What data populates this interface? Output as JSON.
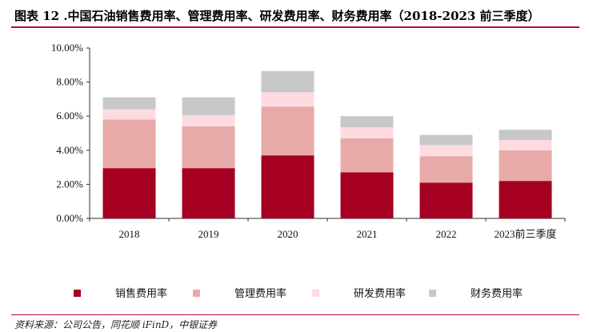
{
  "title": "图表 12 .中国石油销售费用率、管理费用率、研发费用率、财务费用率（2018-2023 前三季度）",
  "source": "资料来源：公司公告，同花顺 iFinD，中银证券",
  "chart_data": {
    "type": "bar",
    "stacked": true,
    "categories": [
      "2018",
      "2019",
      "2020",
      "2021",
      "2022",
      "2023前三季度"
    ],
    "series": [
      {
        "name": "销售费用率",
        "color": "#a50021",
        "values": [
          2.95,
          2.95,
          3.7,
          2.7,
          2.1,
          2.2
        ]
      },
      {
        "name": "管理费用率",
        "color": "#e8aaa8",
        "values": [
          2.85,
          2.45,
          2.85,
          2.0,
          1.55,
          1.8
        ]
      },
      {
        "name": "研发费用率",
        "color": "#fddbe0",
        "values": [
          0.6,
          0.65,
          0.85,
          0.65,
          0.65,
          0.6
        ]
      },
      {
        "name": "财务费用率",
        "color": "#c8c8c8",
        "values": [
          0.7,
          1.05,
          1.25,
          0.65,
          0.6,
          0.6
        ]
      }
    ],
    "y_ticks": [
      "0.00%",
      "2.00%",
      "4.00%",
      "6.00%",
      "8.00%",
      "10.00%"
    ],
    "ylim": [
      0,
      10
    ],
    "legend_position": "bottom",
    "grid": false
  }
}
